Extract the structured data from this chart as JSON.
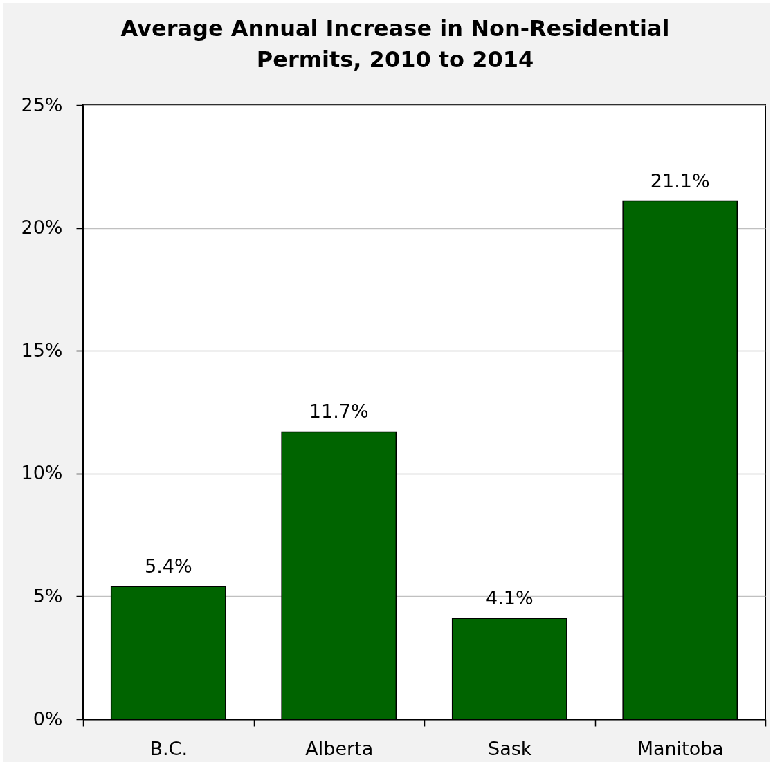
{
  "chart_data": {
    "type": "bar",
    "title": "Average Annual Increase in Non-Residential Permits, 2010 to 2014",
    "categories": [
      "B.C.",
      "Alberta",
      "Sask",
      "Manitoba"
    ],
    "values": [
      5.4,
      11.7,
      4.1,
      21.1
    ],
    "value_labels": [
      "5.4%",
      "11.7%",
      "4.1%",
      "21.1%"
    ],
    "color": "#006400",
    "ylim": [
      0,
      25
    ],
    "yticks": [
      {
        "value": 0,
        "label": "0%"
      },
      {
        "value": 5,
        "label": "5%"
      },
      {
        "value": 10,
        "label": "10%"
      },
      {
        "value": 15,
        "label": "15%"
      },
      {
        "value": 20,
        "label": "20%"
      },
      {
        "value": 25,
        "label": "25%"
      }
    ],
    "grid": "y"
  }
}
